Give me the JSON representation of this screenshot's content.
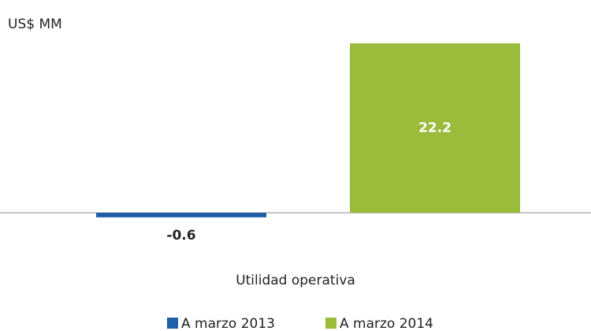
{
  "chart_data": {
    "type": "bar",
    "ylabel": "US$ MM",
    "categories": [
      "Utilidad operativa"
    ],
    "series": [
      {
        "name": "A marzo 2013",
        "color": "#1f5fa8",
        "values": [
          -0.6
        ]
      },
      {
        "name": "A marzo 2014",
        "color": "#9bbb3b",
        "values": [
          22.2
        ]
      }
    ]
  }
}
